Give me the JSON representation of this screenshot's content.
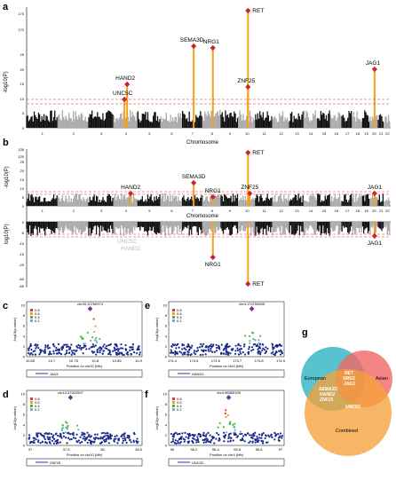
{
  "panels": {
    "a": {
      "label": "a",
      "ylabel": "-log10(P)",
      "xlabel": "Chromosome",
      "yticks": [
        "0",
        "5",
        "10",
        "15",
        "20",
        "25",
        "170",
        "175"
      ],
      "chromosomes": [
        "1",
        "2",
        "3",
        "4",
        "5",
        "6",
        "7",
        "8",
        "9",
        "10",
        "11",
        "12",
        "13",
        "14",
        "15",
        "16",
        "17",
        "18",
        "19",
        "20",
        "21",
        "22"
      ],
      "genes": [
        "RET",
        "SEMA3D",
        "NRG1",
        "JAG1",
        "HAND2",
        "ZNF25",
        "UNC5C"
      ]
    },
    "b": {
      "label": "b",
      "ylabel_top": "-log10(P)",
      "ylabel_bottom": "log10(P)",
      "xlabel": "Chromosome",
      "yticks_top": [
        "0",
        "5",
        "10",
        "15",
        "20",
        "25",
        "120",
        "135"
      ],
      "yticks_bottom": [
        "0",
        "-5",
        "-10",
        "-15",
        "-20",
        "-60",
        "-65"
      ],
      "genes_top": [
        "RET",
        "SEMA3D",
        "NRG1",
        "HAND2",
        "ZNF25",
        "JAG1"
      ],
      "genes_bottom": [
        "NRG1",
        "RET",
        "JAG1",
        "UNC5C",
        "HAND2"
      ]
    },
    "c": {
      "label": "c",
      "snp": "chr20:10769974",
      "xlabel": "Position on chr20 (Mb)",
      "ylabel": "-log10(p-value)",
      "gene": "JAG1",
      "xticks": [
        "10.65",
        "10.7",
        "10.75",
        "10.8",
        "10.85",
        "10.9"
      ],
      "yticks": [
        "0",
        "2",
        "4",
        "6",
        "8",
        "10"
      ]
    },
    "d": {
      "label": "d",
      "snp": "chr10:37922597",
      "xlabel": "Position on chr10 (Mb)",
      "ylabel": "-log10(p-value)",
      "gene": "ZNF25",
      "xticks": [
        "37",
        "37.5",
        "38",
        "38.5"
      ],
      "yticks": [
        "0",
        "2",
        "4",
        "6",
        "8",
        "10"
      ]
    },
    "e": {
      "label": "e",
      "snp": "chr4:174750895",
      "xlabel": "Position on chr4 (Mb)",
      "ylabel": "-log10(p-value)",
      "gene": "HAND2",
      "xticks": [
        "174.4",
        "174.5",
        "174.6",
        "174.7",
        "174.8",
        "174.9"
      ],
      "yticks": [
        "0",
        "2",
        "4",
        "6",
        "8",
        "10"
      ]
    },
    "f": {
      "label": "f",
      "snp": "chr4:96559159",
      "xlabel": "Position on chr4 (Mb)",
      "ylabel": "-log10(p-value)",
      "gene": "UNC5C",
      "xticks": [
        "96",
        "96.2",
        "96.4",
        "96.6",
        "96.8",
        "97"
      ],
      "yticks": [
        "0",
        "2",
        "4",
        "6",
        "8",
        "10"
      ]
    },
    "g": {
      "label": "g",
      "sets": [
        "European",
        "Asian",
        "Combined"
      ],
      "overlap_all": [
        "RET",
        "NRG1",
        "JAG1"
      ],
      "overlap_eur_comb": [
        "SEMA3D",
        "HAND2",
        "ZNF25"
      ],
      "comb_only": [
        "UNC5C"
      ],
      "colors": {
        "european": "#3bb7c4",
        "asian": "#f06666",
        "combined": "#f5a23a"
      }
    }
  },
  "legend_r2": [
    "0.8",
    "0.6",
    "0.4",
    "0.2"
  ]
}
